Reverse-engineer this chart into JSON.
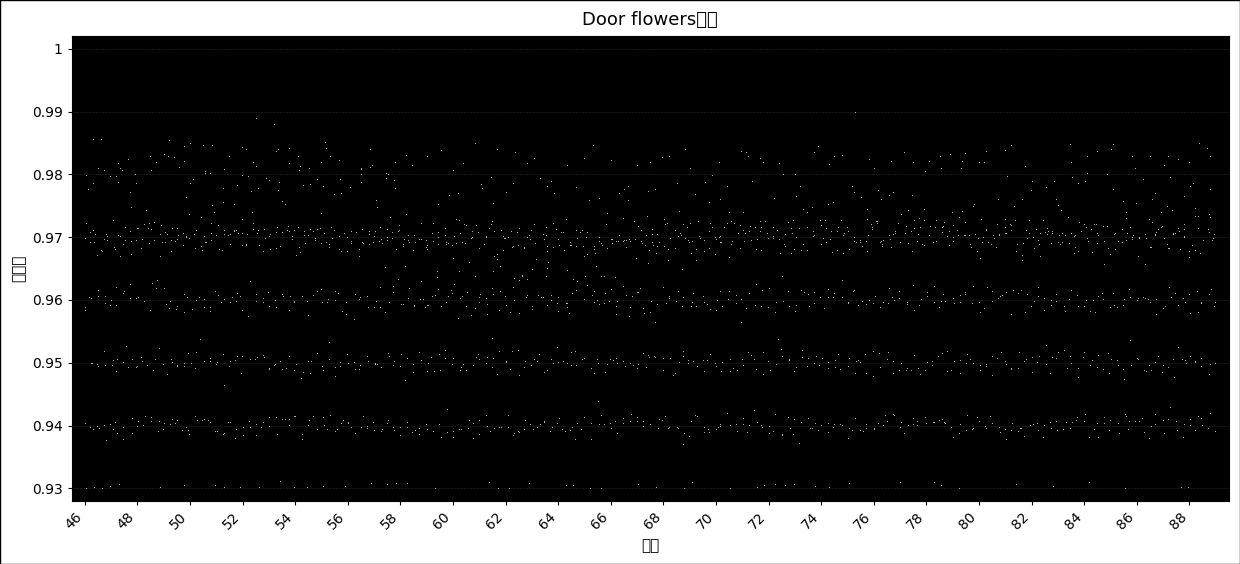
{
  "title": "Door flowers序列",
  "xlabel": "帧号",
  "ylabel": "相似度",
  "xlim": [
    45.5,
    89.5
  ],
  "ylim": [
    0.928,
    1.002
  ],
  "xticks": [
    46,
    48,
    50,
    52,
    54,
    56,
    58,
    60,
    62,
    64,
    66,
    68,
    70,
    72,
    74,
    76,
    78,
    80,
    82,
    84,
    86,
    88
  ],
  "yticks": [
    0.93,
    0.94,
    0.95,
    0.96,
    0.97,
    0.98,
    0.99,
    1
  ],
  "ytick_labels": [
    "0.93",
    "0.94",
    "0.95",
    "0.96",
    "0.97",
    "0.98",
    "0.99",
    "1"
  ],
  "bg_color": "#000000",
  "dot_color": "#c8c8c8",
  "axes_bg": "#000000",
  "grid_color": "#888888",
  "title_fontsize": 13,
  "axis_label_fontsize": 11,
  "tick_fontsize": 10,
  "dot_size": 2.0,
  "random_seed": 42
}
